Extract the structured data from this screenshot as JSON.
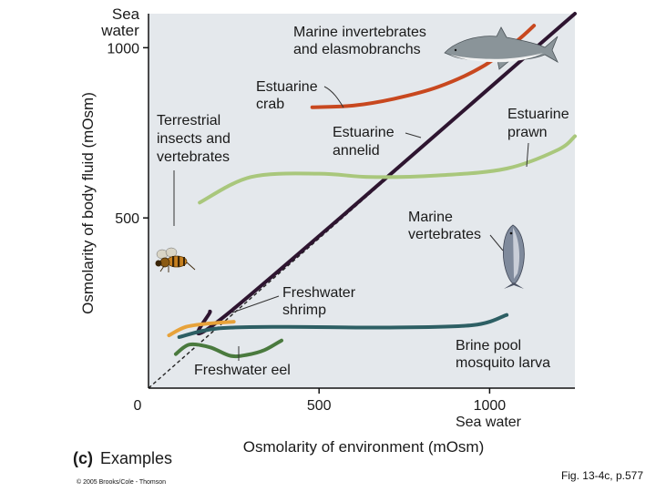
{
  "chart_data": {
    "type": "line",
    "xlabel": "Osmolarity of environment (mOsm)",
    "ylabel": "Osmolarity of body fluid (mOsm)",
    "xlim": [
      0,
      1250
    ],
    "ylim": [
      0,
      1100
    ],
    "x_ticks": [
      "0",
      "500",
      "1000"
    ],
    "y_ticks": [
      "500",
      "1000"
    ],
    "x_end_label": "Sea water",
    "y_end_label": [
      "Sea",
      "water"
    ],
    "grid": false,
    "reference_line": {
      "style": "dashed",
      "points": [
        [
          0,
          0
        ],
        [
          1250,
          1100
        ]
      ]
    },
    "series": [
      {
        "name": "Marine invertebrates and elasmobranchs",
        "color": "#2e1530",
        "points": [
          [
            180,
            225
          ],
          [
            240,
            225
          ],
          [
            1250,
            1100
          ]
        ]
      },
      {
        "name": "Estuarine crab",
        "color": "#c8481f",
        "points": [
          [
            480,
            825
          ],
          [
            600,
            830
          ],
          [
            720,
            850
          ],
          [
            850,
            885
          ],
          [
            980,
            945
          ],
          [
            1080,
            1020
          ],
          [
            1130,
            1065
          ]
        ]
      },
      {
        "name": "Estuarine prawn",
        "color": "#a9c77c",
        "points": [
          [
            150,
            545
          ],
          [
            300,
            620
          ],
          [
            500,
            630
          ],
          [
            650,
            620
          ],
          [
            850,
            625
          ],
          [
            1050,
            645
          ],
          [
            1200,
            700
          ],
          [
            1250,
            740
          ]
        ]
      },
      {
        "name": "Freshwater shrimp",
        "color": "#e7a23a",
        "points": [
          [
            60,
            155
          ],
          [
            110,
            180
          ],
          [
            180,
            190
          ],
          [
            250,
            195
          ]
        ]
      },
      {
        "name": "Brine pool mosquito larva",
        "color": "#2d5f64",
        "points": [
          [
            90,
            150
          ],
          [
            200,
            175
          ],
          [
            400,
            180
          ],
          [
            700,
            178
          ],
          [
            950,
            185
          ],
          [
            1050,
            215
          ]
        ]
      },
      {
        "name": "Freshwater eel",
        "color": "#4a7a3e",
        "points": [
          [
            80,
            100
          ],
          [
            120,
            128
          ],
          [
            180,
            120
          ],
          [
            240,
            95
          ],
          [
            290,
            98
          ],
          [
            340,
            112
          ],
          [
            390,
            140
          ]
        ]
      }
    ],
    "annotations": {
      "marine_inv": [
        "Marine invertebrates",
        "and elasmobranchs"
      ],
      "est_crab": [
        "Estuarine",
        "crab"
      ],
      "est_annelid": [
        "Estuarine",
        "annelid"
      ],
      "est_prawn": [
        "Estuarine",
        "prawn"
      ],
      "terrestrial": [
        "Terrestrial",
        "insects and",
        "vertebrates"
      ],
      "marine_vert": [
        "Marine",
        "vertebrates"
      ],
      "fw_shrimp": [
        "Freshwater",
        "shrimp"
      ],
      "brine": [
        "Brine pool",
        "mosquito larva"
      ],
      "fw_eel": [
        "Freshwater eel"
      ]
    },
    "caption_prefix": "(c)",
    "caption_text": "Examples"
  },
  "copyright": "© 2005 Brooks/Cole - Thomson",
  "figure_ref": "Fig. 13-4c, p.577",
  "colors": {
    "plot_background": "#e4e8ec",
    "axis": "#111111",
    "annotation_leader": "#333333"
  },
  "icons": [
    "shark-icon",
    "bee-icon",
    "tuna-icon"
  ]
}
